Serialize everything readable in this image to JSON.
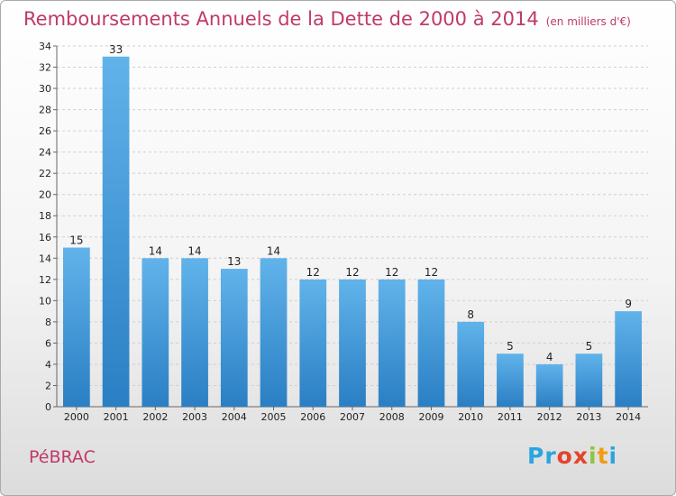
{
  "header": {
    "title": "Remboursements Annuels de la Dette de 2000 à 2014",
    "unit": "(en milliers d'€)"
  },
  "footer": {
    "commune": "PéBRAC",
    "logo_letters": [
      "P",
      "r",
      "o",
      "x",
      "i",
      "t",
      "i"
    ],
    "logo_colors": [
      "#2aa6df",
      "#2aa6df",
      "#e5422b",
      "#e5422b",
      "#8cc63f",
      "#f39c12",
      "#2aa6df"
    ]
  },
  "colors": {
    "title": "#c0396a",
    "bar_top": "#61b3ea",
    "bar_bottom": "#2a7fc4",
    "grid": "#cfcfcf"
  },
  "chart_data": {
    "type": "bar",
    "title": "Remboursements Annuels de la Dette de 2000 à 2014",
    "xlabel": "",
    "ylabel": "",
    "categories": [
      "2000",
      "2001",
      "2002",
      "2003",
      "2004",
      "2005",
      "2006",
      "2007",
      "2008",
      "2009",
      "2010",
      "2011",
      "2012",
      "2013",
      "2014"
    ],
    "values": [
      15,
      33,
      14,
      14,
      13,
      14,
      12,
      12,
      12,
      12,
      8,
      5,
      4,
      5,
      9
    ],
    "ylim": [
      0,
      34
    ],
    "yticks": [
      0,
      2,
      4,
      6,
      8,
      10,
      12,
      14,
      16,
      18,
      20,
      22,
      24,
      26,
      28,
      30,
      32,
      34
    ],
    "grid": true,
    "legend": "none"
  }
}
